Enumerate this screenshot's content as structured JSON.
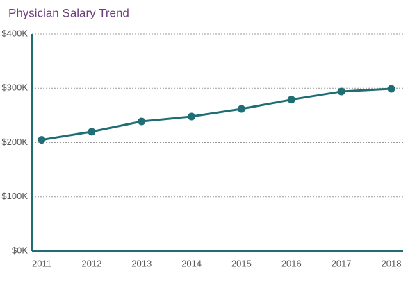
{
  "chart_data": {
    "type": "line",
    "title": "Physician Salary Trend",
    "categories": [
      "2011",
      "2012",
      "2013",
      "2014",
      "2015",
      "2016",
      "2017",
      "2018"
    ],
    "series": [
      {
        "name": "Physician Salary",
        "color": "#1f6e75",
        "values": [
          205000,
          220000,
          239000,
          248000,
          262000,
          279000,
          294000,
          299000
        ]
      }
    ],
    "ylim": [
      0,
      400000
    ],
    "yticks": [
      {
        "value": 0,
        "label": "$0K"
      },
      {
        "value": 100000,
        "label": "$100K"
      },
      {
        "value": 200000,
        "label": "$200K"
      },
      {
        "value": 300000,
        "label": "$300K"
      },
      {
        "value": 400000,
        "label": "$400K"
      }
    ],
    "grid": true,
    "title_color": "#6a3f7a"
  }
}
